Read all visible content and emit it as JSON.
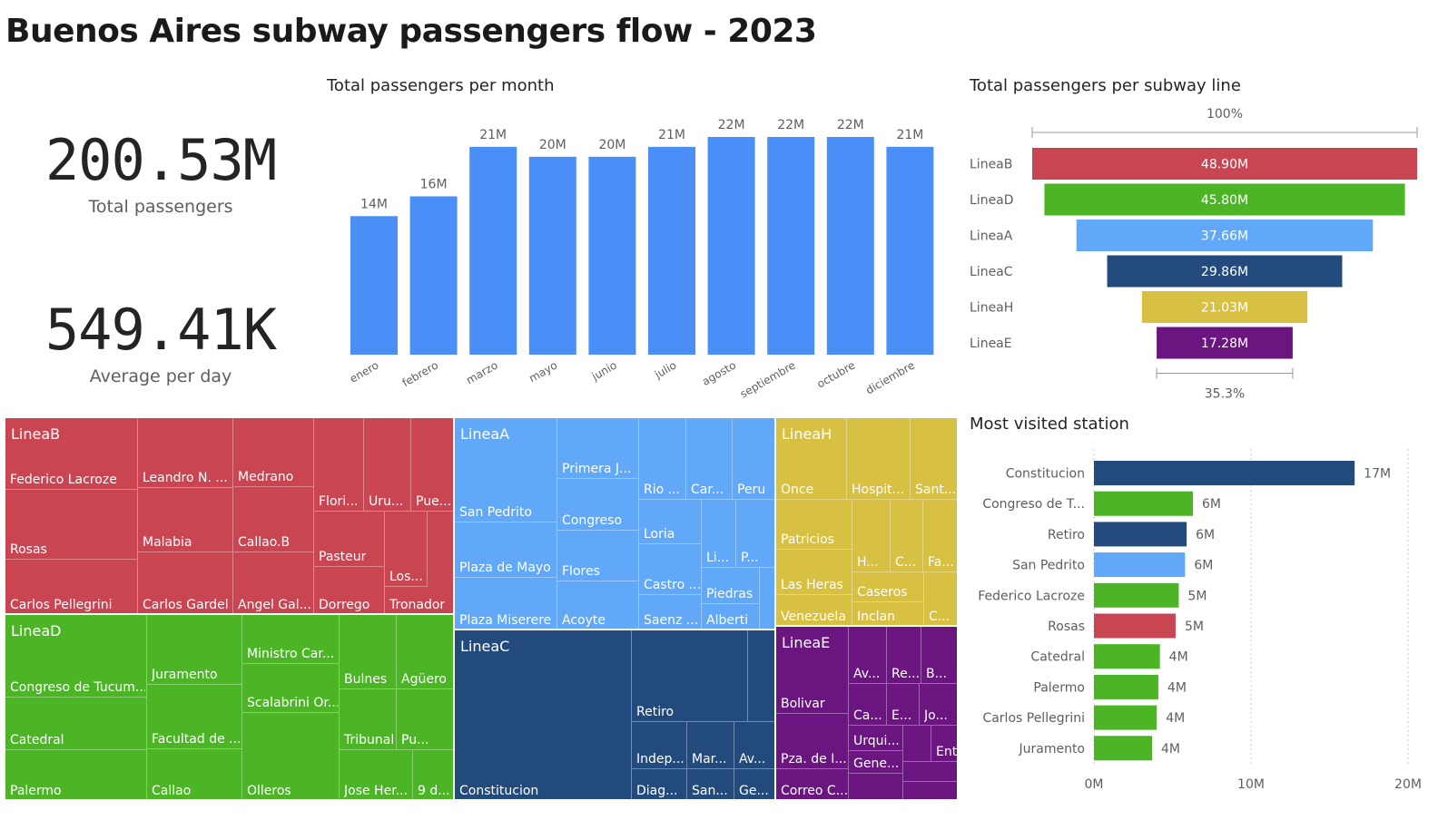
{
  "title": "Buenos Aires subway passengers flow - 2023",
  "kpis": {
    "total_value": "200.53M",
    "total_label": "Total passengers",
    "avg_value": "549.41K",
    "avg_label": "Average per day"
  },
  "colors": {
    "month_bar": "#4a8ff8",
    "LineaB": "#c94552",
    "LineaD": "#4bb526",
    "LineaA": "#62a8f8",
    "LineaC": "#234a7d",
    "LineaH": "#d8c042",
    "LineaE": "#6a1580"
  },
  "chart_data": [
    {
      "type": "bar",
      "title": "Total passengers per month",
      "categories": [
        "enero",
        "febrero",
        "marzo",
        "mayo",
        "junio",
        "julio",
        "agosto",
        "septiembre",
        "octubre",
        "diciembre"
      ],
      "values": [
        14,
        16,
        21,
        20,
        20,
        21,
        22,
        22,
        22,
        21
      ],
      "data_labels": [
        "14M",
        "16M",
        "21M",
        "20M",
        "20M",
        "21M",
        "22M",
        "22M",
        "22M",
        "21M"
      ],
      "unit": "M",
      "ylim": [
        0,
        22
      ]
    },
    {
      "type": "funnel",
      "title": "Total passengers per subway line",
      "categories": [
        "LineaB",
        "LineaD",
        "LineaA",
        "LineaC",
        "LineaH",
        "LineaE"
      ],
      "values": [
        48.9,
        45.8,
        37.66,
        29.86,
        21.03,
        17.28
      ],
      "data_labels": [
        "48.90M",
        "45.80M",
        "37.66M",
        "29.86M",
        "21.03M",
        "17.28M"
      ],
      "top_percent_label": "100%",
      "bottom_percent_label": "35.3%"
    },
    {
      "type": "bar",
      "orientation": "horizontal",
      "title": "Most visited station",
      "categories": [
        "Constitucion",
        "Congreso de T...",
        "Retiro",
        "San Pedrito",
        "Federico Lacroze",
        "Rosas",
        "Catedral",
        "Palermo",
        "Carlos Pellegrini",
        "Juramento"
      ],
      "values": [
        17,
        6,
        6,
        6,
        5,
        5,
        4,
        4,
        4,
        4
      ],
      "bar_lengths_M": [
        16.6,
        6.3,
        5.9,
        5.8,
        5.4,
        5.2,
        4.2,
        4.1,
        4.0,
        3.7
      ],
      "data_labels": [
        "17M",
        "6M",
        "6M",
        "6M",
        "5M",
        "5M",
        "4M",
        "4M",
        "4M",
        "4M"
      ],
      "lines": [
        "LineaC",
        "LineaD",
        "LineaC",
        "LineaA",
        "LineaD",
        "LineaB",
        "LineaD",
        "LineaD",
        "LineaD",
        "LineaD"
      ],
      "xlim": [
        0,
        20
      ],
      "xticks": [
        "0M",
        "10M",
        "20M"
      ],
      "grid": true
    },
    {
      "type": "treemap",
      "groups": [
        {
          "name": "LineaB",
          "stations": [
            "Federico Lacroze",
            "Rosas",
            "Carlos Pellegrini",
            "Leandro N. ...",
            "Malabia",
            "Carlos Gardel",
            "Medrano",
            "Callao.B",
            "Angel Gal...",
            "Flori...",
            "Uru...",
            "Pue...",
            "Pasteur",
            "Dorrego",
            "Los...",
            "Tronador"
          ]
        },
        {
          "name": "LineaD",
          "stations": [
            "Congreso de Tucum...",
            "Catedral",
            "Palermo",
            "Juramento",
            "Facultad de ...",
            "Callao",
            "Ministro Car...",
            "Scalabrini Or...",
            "Olleros",
            "Bulnes",
            "Agüero",
            "Tribunales",
            "Pu...",
            "Jose Her...",
            "9 d..."
          ]
        },
        {
          "name": "LineaA",
          "stations": [
            "San Pedrito",
            "Plaza de Mayo",
            "Plaza Miserere",
            "Primera J...",
            "Congreso",
            "Flores",
            "Acoyte",
            "Rio ...",
            "Car...",
            "Peru",
            "Loria",
            "Li...",
            "P...",
            "Castro ...",
            "Piedras",
            "Saenz ...",
            "Alberti"
          ]
        },
        {
          "name": "LineaC",
          "stations": [
            "Constitucion",
            "Retiro",
            "Indep...",
            "Diag...",
            "Mar...",
            "San...",
            "Av...",
            "Ge..."
          ]
        },
        {
          "name": "LineaH",
          "stations": [
            "Once",
            "Hospit...",
            "Sant...",
            "Patricios",
            "Las Heras",
            "Venezuela",
            "H...",
            "C...",
            "Fa...",
            "Caseros",
            "Inclan",
            "C..."
          ]
        },
        {
          "name": "LineaE",
          "stations": [
            "Bolivar",
            "Pza. de I...",
            "Correo C...",
            "Av...",
            "Re...",
            "B...",
            "Ca...",
            "E...",
            "Jo...",
            "Urqui...",
            "Entre...",
            "Gene..."
          ]
        }
      ]
    }
  ]
}
